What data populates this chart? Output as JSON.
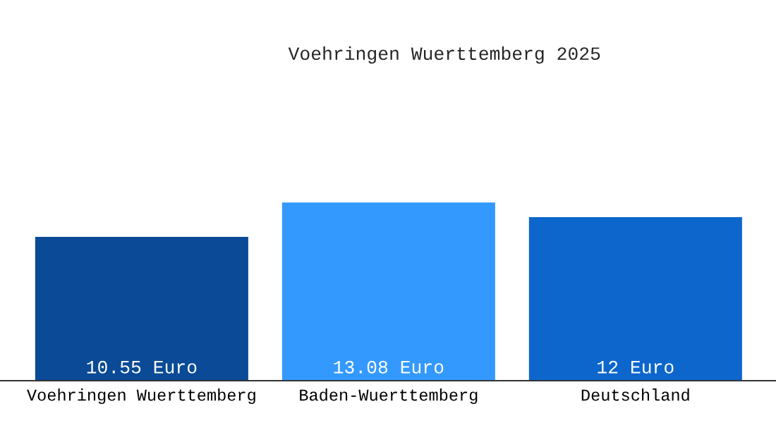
{
  "chart_data": {
    "type": "bar",
    "title": "Voehringen Wuerttemberg 2025",
    "categories": [
      "Voehringen Wuerttemberg",
      "Baden-Wuerttemberg",
      "Deutschland"
    ],
    "values": [
      10.55,
      13.08,
      12
    ],
    "colors": [
      "#0a4a96",
      "#3399ff",
      "#0c66cc"
    ],
    "value_labels": [
      "10.55 Euro",
      "13.08 Euro",
      "12 Euro"
    ],
    "tick_labels": "x"
  }
}
